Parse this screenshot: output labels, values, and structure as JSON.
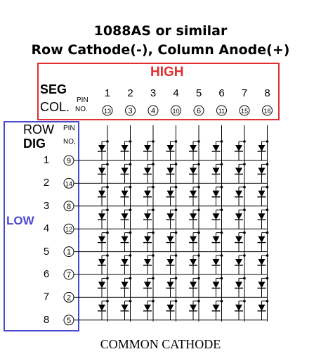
{
  "title_line1": "1088AS or similar",
  "title_line2": "Row Cathode(-), Column Anode(+)",
  "high_label": "HIGH",
  "low_label": "LOW",
  "seg_label": "SEG",
  "col_label": "COL.",
  "pin_label": "PIN",
  "no_label": "NO.",
  "row_label": "ROW",
  "row_pin_label": "PIN",
  "row_no_label": "NO,",
  "dig_label": "DIG",
  "columns": [
    {
      "num": "1",
      "pin": "13"
    },
    {
      "num": "2",
      "pin": "3"
    },
    {
      "num": "3",
      "pin": "4"
    },
    {
      "num": "4",
      "pin": "10"
    },
    {
      "num": "5",
      "pin": "6"
    },
    {
      "num": "6",
      "pin": "11"
    },
    {
      "num": "7",
      "pin": "15"
    },
    {
      "num": "8",
      "pin": "16"
    }
  ],
  "rows": [
    {
      "num": "1",
      "pin": "9"
    },
    {
      "num": "2",
      "pin": "14"
    },
    {
      "num": "3",
      "pin": "8"
    },
    {
      "num": "4",
      "pin": "12"
    },
    {
      "num": "5",
      "pin": "1"
    },
    {
      "num": "6",
      "pin": "7"
    },
    {
      "num": "7",
      "pin": "2"
    },
    {
      "num": "8",
      "pin": "5"
    }
  ],
  "footer": "COMMON CATHODE"
}
